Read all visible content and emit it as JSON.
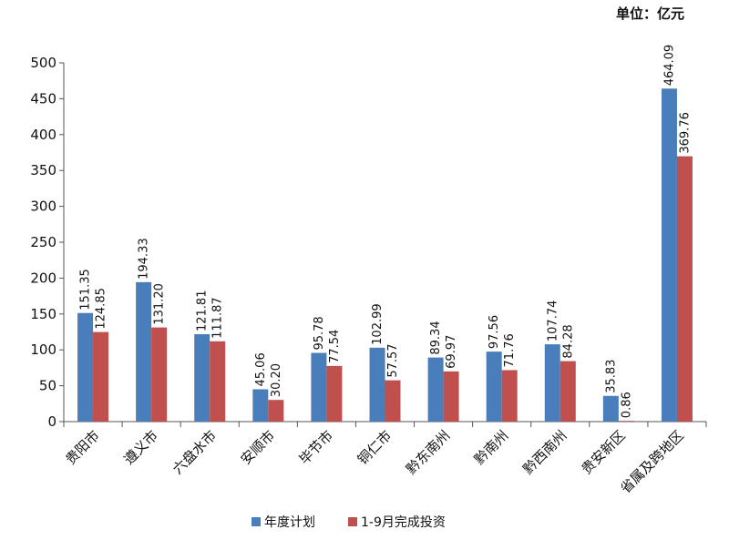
{
  "unit_label": "单位：亿元",
  "colors": {
    "plan": "#4a7ebb",
    "actual": "#c0504d"
  },
  "chart_data": {
    "type": "bar",
    "title": "",
    "xlabel": "",
    "ylabel": "",
    "ylim": [
      0,
      500
    ],
    "yticks": [
      "0",
      "50",
      "100",
      "150",
      "200",
      "250",
      "300",
      "350",
      "400",
      "450",
      "500"
    ],
    "grid": false,
    "legend_position": "bottom",
    "categories": [
      "贵阳市",
      "遵义市",
      "六盘水市",
      "安顺市",
      "毕节市",
      "铜仁市",
      "黔东南州",
      "黔南州",
      "黔西南州",
      "贵安新区",
      "省属及跨地区"
    ],
    "series": [
      {
        "name": "年度计划",
        "values": [
          151.35,
          194.33,
          121.81,
          45.06,
          95.78,
          102.99,
          89.34,
          97.56,
          107.74,
          35.83,
          464.09
        ],
        "labels": [
          "151.35",
          "194.33",
          "121.81",
          "45.06",
          "95.78",
          "102.99",
          "89.34",
          "97.56",
          "107.74",
          "35.83",
          "464.09"
        ]
      },
      {
        "name": "1-9月完成投资",
        "values": [
          124.85,
          131.2,
          111.87,
          30.2,
          77.54,
          57.57,
          69.97,
          71.76,
          84.28,
          0.86,
          369.76
        ],
        "labels": [
          "124.85",
          "131.20",
          "111.87",
          "30.20",
          "77.54",
          "57.57",
          "69.97",
          "71.76",
          "84.28",
          "0.86",
          "369.76"
        ]
      }
    ]
  }
}
